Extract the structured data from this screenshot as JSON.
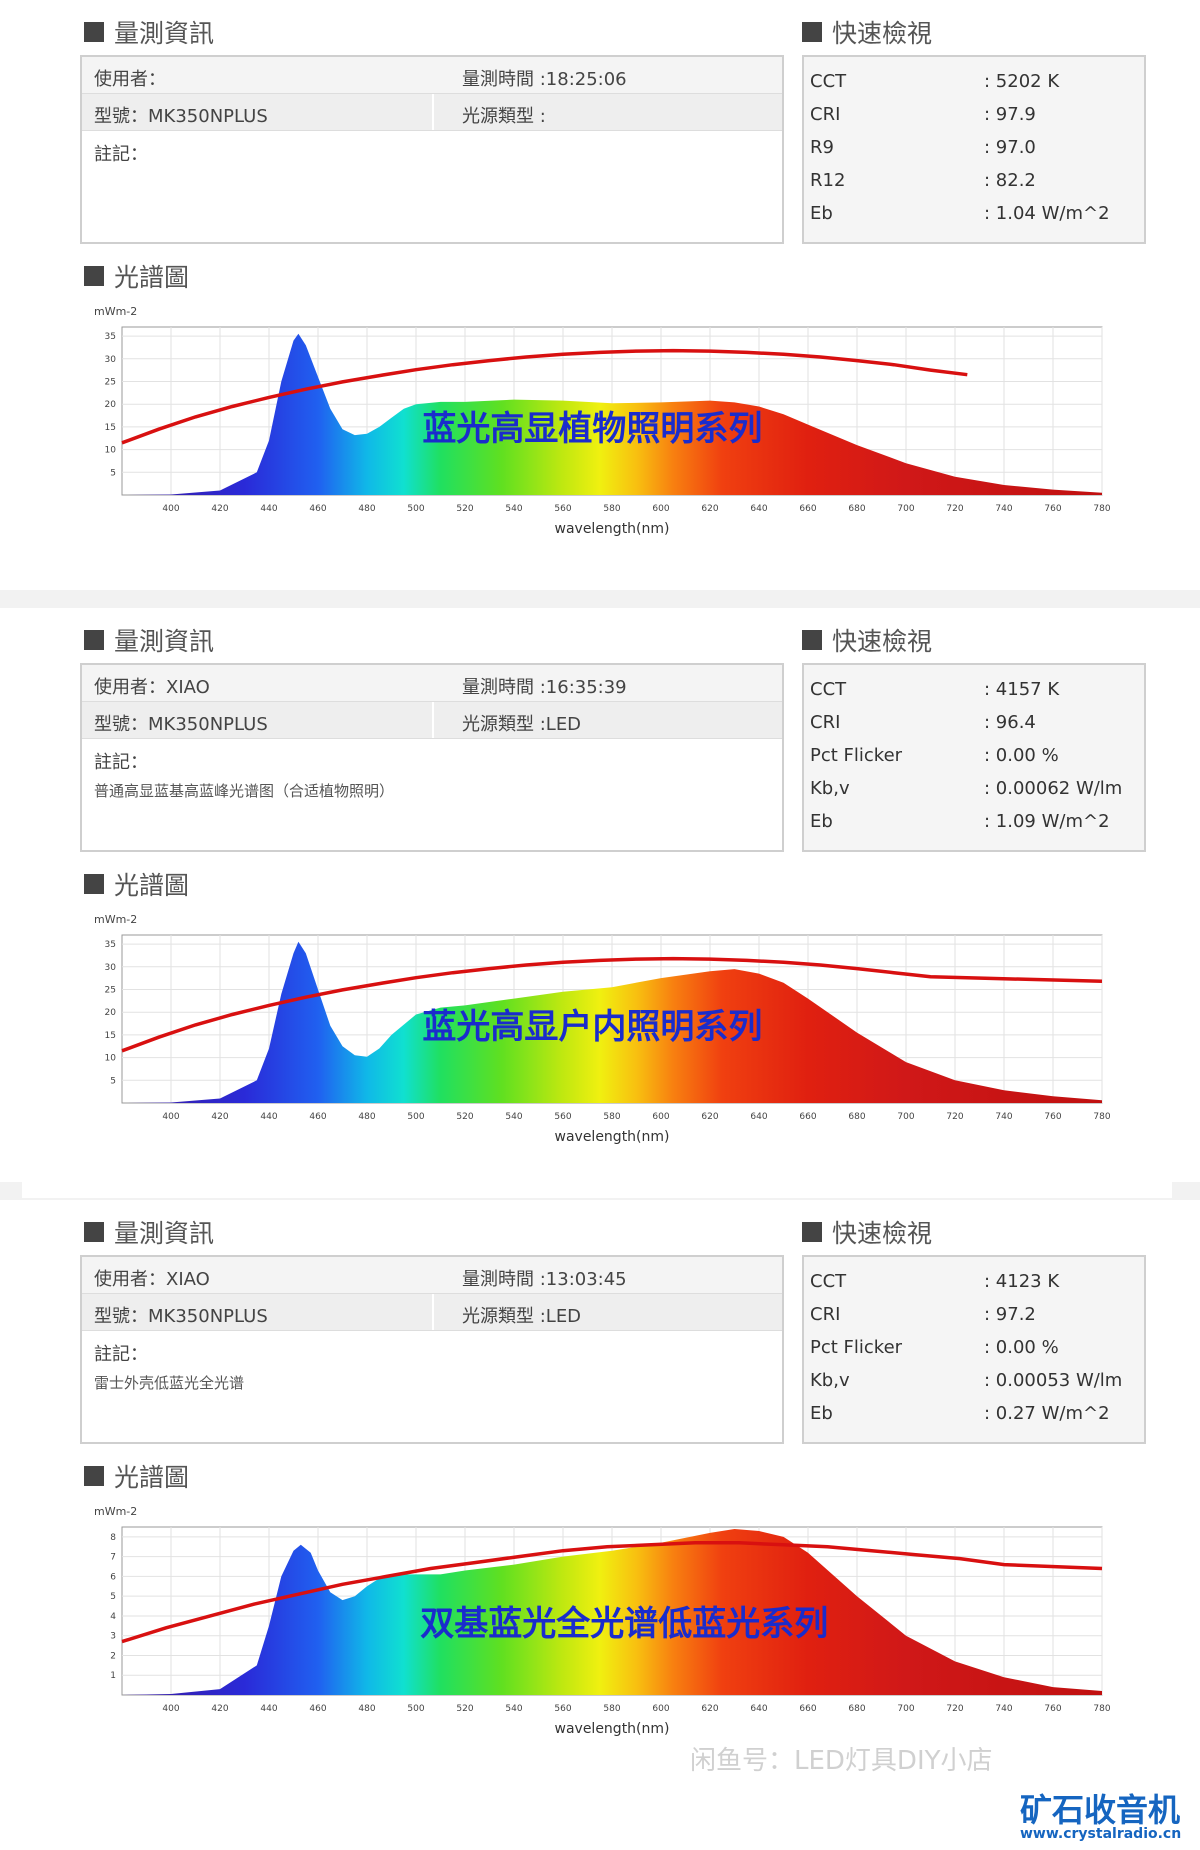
{
  "panels": [
    {
      "info_title": "量測資訊",
      "quick_title": "快速檢視",
      "spectrum_title": "光譜圖",
      "user": "使用者：",
      "time": "量測時間 :18:25:06",
      "model": "型號：MK350NPLUS",
      "source_type": "光源類型 :",
      "note_label": "註記：",
      "note_text": "",
      "quick": [
        {
          "k": "CCT",
          "v": ": 5202 K"
        },
        {
          "k": "CRI",
          "v": ": 97.9"
        },
        {
          "k": "R9",
          "v": ": 97.0"
        },
        {
          "k": "R12",
          "v": ": 82.2"
        },
        {
          "k": "Eb",
          "v": ": 1.04 W/m^2"
        }
      ]
    },
    {
      "info_title": "量測資訊",
      "quick_title": "快速檢視",
      "spectrum_title": "光譜圖",
      "user": "使用者：XIAO",
      "time": "量測時間 :16:35:39",
      "model": "型號：MK350NPLUS",
      "source_type": "光源類型 :LED",
      "note_label": "註記：",
      "note_text": "普通高显蓝基高蓝峰光谱图（合适植物照明）",
      "quick": [
        {
          "k": "CCT",
          "v": ": 4157 K"
        },
        {
          "k": "CRI",
          "v": ": 96.4"
        },
        {
          "k": "Pct Flicker",
          "v": ": 0.00 %"
        },
        {
          "k": "Kb,v",
          "v": ": 0.00062 W/lm"
        },
        {
          "k": "Eb",
          "v": ": 1.09 W/m^2"
        }
      ]
    },
    {
      "info_title": "量測資訊",
      "quick_title": "快速檢視",
      "spectrum_title": "光譜圖",
      "user": "使用者：XIAO",
      "time": "量測時間 :13:03:45",
      "model": "型號：MK350NPLUS",
      "source_type": "光源類型 :LED",
      "note_label": "註記：",
      "note_text": "雷士外壳低蓝光全光谱",
      "quick": [
        {
          "k": "CCT",
          "v": ": 4123 K"
        },
        {
          "k": "CRI",
          "v": ": 97.2"
        },
        {
          "k": "Pct Flicker",
          "v": ": 0.00 %"
        },
        {
          "k": "Kb,v",
          "v": ": 0.00053 W/lm"
        },
        {
          "k": "Eb",
          "v": ": 0.27 W/m^2"
        }
      ]
    }
  ],
  "watermark": "闲鱼号：LED灯具DIY小店",
  "brand_text": "矿石收音机",
  "brand_url": "www.crystalradio.cn",
  "chart_data": [
    {
      "type": "area",
      "title": "",
      "overlay_label": "蓝光高显植物照明系列",
      "ylabel_unit": "mWm-2",
      "xlabel": "wavelength(nm)",
      "x_ticks": [
        400,
        420,
        440,
        460,
        480,
        500,
        520,
        540,
        560,
        580,
        600,
        620,
        640,
        660,
        680,
        700,
        720,
        740,
        760,
        780
      ],
      "y_ticks": [
        5,
        10,
        15,
        20,
        25,
        30,
        35
      ],
      "xlim": [
        380,
        780
      ],
      "ylim": [
        0,
        37
      ],
      "x": [
        380,
        400,
        420,
        435,
        440,
        445,
        450,
        452,
        455,
        460,
        465,
        470,
        475,
        480,
        485,
        490,
        495,
        500,
        510,
        520,
        540,
        560,
        580,
        600,
        620,
        630,
        640,
        650,
        660,
        680,
        700,
        720,
        740,
        760,
        780
      ],
      "values": [
        0,
        0.1,
        1,
        5,
        12,
        25,
        34,
        35.5,
        33,
        26,
        19,
        14.5,
        13.2,
        13.5,
        15,
        17,
        19,
        20,
        20.5,
        20.5,
        21,
        20.8,
        20.2,
        20.4,
        20.8,
        20.4,
        19.5,
        17.8,
        15.5,
        11,
        7,
        4,
        2.2,
        1.2,
        0.5
      ],
      "curve": [
        11.5,
        14.5,
        17.2,
        19.5,
        21.5,
        23.3,
        24.9,
        26.3,
        27.6,
        28.7,
        29.6,
        30.4,
        31,
        31.4,
        31.7,
        31.8,
        31.7,
        31.4,
        31,
        30.4,
        29.6,
        28.7,
        27.5,
        26.5
      ],
      "curve_x": [
        380,
        395,
        410,
        425,
        440,
        455,
        470,
        485,
        500,
        515,
        530,
        545,
        560,
        575,
        590,
        605,
        620,
        635,
        650,
        665,
        680,
        695,
        710,
        725
      ]
    },
    {
      "type": "area",
      "title": "",
      "overlay_label": "蓝光高显户内照明系列",
      "ylabel_unit": "mWm-2",
      "xlabel": "wavelength(nm)",
      "x_ticks": [
        400,
        420,
        440,
        460,
        480,
        500,
        520,
        540,
        560,
        580,
        600,
        620,
        640,
        660,
        680,
        700,
        720,
        740,
        760,
        780
      ],
      "y_ticks": [
        5,
        10,
        15,
        20,
        25,
        30,
        35
      ],
      "xlim": [
        380,
        780
      ],
      "ylim": [
        0,
        37
      ],
      "x": [
        380,
        400,
        420,
        435,
        440,
        445,
        450,
        452,
        455,
        460,
        465,
        470,
        475,
        480,
        485,
        490,
        500,
        510,
        520,
        540,
        560,
        580,
        600,
        620,
        630,
        640,
        650,
        660,
        680,
        700,
        720,
        740,
        760,
        780
      ],
      "values": [
        0,
        0.1,
        1,
        5,
        12,
        24,
        33,
        35.5,
        33,
        25,
        17,
        12.5,
        10.5,
        10.2,
        12,
        15,
        19.5,
        21,
        21.5,
        23,
        24.5,
        25.5,
        27.5,
        29,
        29.5,
        28.5,
        26.5,
        23,
        15.5,
        9,
        5,
        2.8,
        1.5,
        0.6
      ],
      "curve": [
        11.5,
        14.5,
        17.2,
        19.5,
        21.5,
        23.3,
        24.9,
        26.3,
        27.6,
        28.7,
        29.6,
        30.4,
        31,
        31.4,
        31.7,
        31.8,
        31.7,
        31.4,
        31,
        30.4,
        29.6,
        28.7,
        27.8,
        26.8
      ],
      "curve_x": [
        380,
        395,
        410,
        425,
        440,
        455,
        470,
        485,
        500,
        515,
        530,
        545,
        560,
        575,
        590,
        605,
        620,
        635,
        650,
        665,
        680,
        695,
        710,
        780
      ]
    },
    {
      "type": "area",
      "title": "",
      "overlay_label": "双基蓝光全光谱低蓝光系列",
      "ylabel_unit": "mWm-2",
      "xlabel": "wavelength(nm)",
      "x_ticks": [
        400,
        420,
        440,
        460,
        480,
        500,
        520,
        540,
        560,
        580,
        600,
        620,
        640,
        660,
        680,
        700,
        720,
        740,
        760,
        780
      ],
      "y_ticks": [
        1,
        2,
        3,
        4,
        5,
        6,
        7,
        8
      ],
      "xlim": [
        380,
        780
      ],
      "ylim": [
        0,
        8.5
      ],
      "x": [
        380,
        400,
        420,
        435,
        440,
        445,
        450,
        453,
        457,
        460,
        465,
        470,
        475,
        480,
        485,
        490,
        500,
        510,
        520,
        540,
        560,
        580,
        600,
        620,
        630,
        640,
        650,
        660,
        680,
        700,
        720,
        740,
        760,
        780
      ],
      "values": [
        0,
        0.05,
        0.3,
        1.5,
        3.5,
        6,
        7.3,
        7.6,
        7.2,
        6.3,
        5.2,
        4.8,
        5,
        5.5,
        5.9,
        6.1,
        6.1,
        6.1,
        6.3,
        6.6,
        7,
        7.3,
        7.7,
        8.2,
        8.4,
        8.3,
        8,
        7.2,
        5,
        3,
        1.7,
        0.9,
        0.4,
        0.2
      ],
      "curve": [
        2.7,
        3.4,
        4,
        4.6,
        5.1,
        5.6,
        6,
        6.4,
        6.7,
        7,
        7.3,
        7.5,
        7.6,
        7.7,
        7.7,
        7.6,
        7.5,
        7.3,
        7.1,
        6.9,
        6.6,
        6.4
      ],
      "curve_x": [
        380,
        398,
        416,
        434,
        452,
        470,
        488,
        506,
        524,
        542,
        560,
        578,
        596,
        614,
        632,
        650,
        668,
        686,
        704,
        722,
        740,
        780
      ]
    }
  ]
}
